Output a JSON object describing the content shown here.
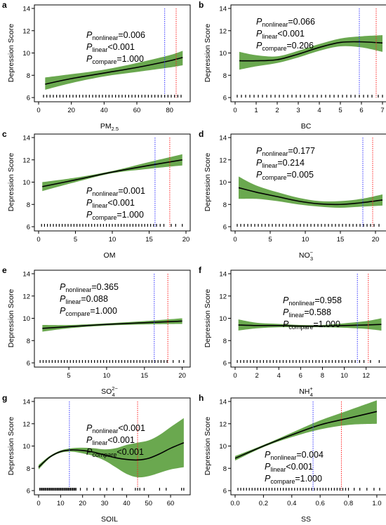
{
  "figure": {
    "colors": {
      "band": "#6aa84f",
      "line": "#000000",
      "blue_ref": "#3333ff",
      "red_ref": "#ff2222"
    }
  },
  "chart_data": [
    {
      "letter": "a",
      "type": "line",
      "xlabel": "PM",
      "xlabel_sub": "2.5",
      "xlabel_sup": "",
      "ylabel": "Depression Score",
      "xlim": [
        0,
        90
      ],
      "ylim": [
        6,
        14
      ],
      "xticks": [
        0,
        20,
        40,
        60,
        80
      ],
      "yticks": [
        6,
        8,
        10,
        12,
        14
      ],
      "x": [
        4,
        20,
        40,
        60,
        80,
        88
      ],
      "y": [
        7.2,
        7.7,
        8.2,
        8.7,
        9.3,
        9.6
      ],
      "lower": [
        6.7,
        7.3,
        7.9,
        8.3,
        8.7,
        8.9
      ],
      "upper": [
        7.8,
        8.1,
        8.5,
        9.1,
        9.8,
        10.2
      ],
      "ref_blue": 77,
      "ref_red": 84,
      "pvalues": [
        "=0.006",
        "<0.001",
        "=1.000"
      ],
      "plabels": [
        "nonlinear",
        "linear",
        "compare"
      ],
      "rug": [
        3,
        5,
        7,
        9,
        11,
        13,
        15,
        17,
        19,
        21,
        23,
        25,
        27,
        29,
        31,
        33,
        35,
        37,
        39,
        41,
        43,
        45,
        47,
        49,
        51,
        53,
        55,
        57,
        59,
        61,
        63,
        65,
        67,
        69,
        71,
        73,
        75,
        77,
        79,
        81,
        83,
        85,
        87
      ]
    },
    {
      "letter": "b",
      "type": "line",
      "xlabel": "BC",
      "xlabel_sub": "",
      "xlabel_sup": "",
      "ylabel": "Depression Score",
      "xlim": [
        0,
        7
      ],
      "ylim": [
        6,
        14
      ],
      "xticks": [
        0,
        1,
        2,
        3,
        4,
        5,
        6,
        7
      ],
      "yticks": [
        6,
        8,
        10,
        12,
        14
      ],
      "x": [
        0.2,
        1,
        2,
        3,
        4,
        5,
        6,
        7
      ],
      "y": [
        9.3,
        9.3,
        9.4,
        9.9,
        10.5,
        10.95,
        11.0,
        10.9
      ],
      "lower": [
        8.5,
        8.8,
        9.1,
        9.6,
        10.2,
        10.6,
        10.5,
        10.1
      ],
      "upper": [
        10.1,
        9.8,
        9.7,
        10.2,
        10.8,
        11.3,
        11.5,
        11.6
      ],
      "ref_blue": 5.9,
      "ref_red": 6.7,
      "pvalues": [
        "=0.066",
        "<0.001",
        "=0.206"
      ],
      "plabels": [
        "nonlinear",
        "linear",
        "compare"
      ],
      "rug": [
        0.1,
        0.3,
        0.5,
        0.7,
        0.9,
        1.1,
        1.3,
        1.5,
        1.7,
        1.9,
        2.1,
        2.3,
        2.5,
        2.7,
        2.9,
        3.1,
        3.3,
        3.5,
        3.7,
        3.9,
        4.1,
        4.3,
        4.5,
        4.7,
        4.9,
        5.1,
        5.3,
        5.5,
        5.7,
        5.9,
        6.1,
        6.3,
        6.5,
        6.8,
        7.0
      ]
    },
    {
      "letter": "c",
      "type": "line",
      "xlabel": "OM",
      "xlabel_sub": "",
      "xlabel_sup": "",
      "ylabel": "Depression Score",
      "xlim": [
        0,
        20
      ],
      "ylim": [
        6,
        14
      ],
      "xticks": [
        0,
        5,
        10,
        15,
        20
      ],
      "yticks": [
        6,
        8,
        10,
        12,
        14
      ],
      "x": [
        0.5,
        5,
        10,
        15,
        19.5
      ],
      "y": [
        9.6,
        10.2,
        10.9,
        11.5,
        12.0
      ],
      "lower": [
        9.2,
        10.0,
        10.8,
        11.2,
        11.5
      ],
      "upper": [
        10.0,
        10.4,
        11.0,
        11.8,
        12.5
      ],
      "ref_blue": 15.8,
      "ref_red": 17.8,
      "pvalues": [
        "=0.001",
        "<0.001",
        "=1.000"
      ],
      "plabels": [
        "nonlinear",
        "linear",
        "compare"
      ],
      "rug": [
        0.4,
        0.8,
        1.2,
        1.6,
        2,
        2.4,
        2.8,
        3.2,
        3.6,
        4,
        4.4,
        4.8,
        5.2,
        5.6,
        6,
        6.4,
        6.8,
        7.2,
        7.6,
        8,
        8.4,
        8.8,
        9.2,
        9.6,
        10,
        10.4,
        10.8,
        11.2,
        11.6,
        12,
        12.4,
        12.8,
        13.2,
        13.6,
        14,
        14.4,
        14.8,
        15.2,
        15.6,
        16,
        16.5,
        17,
        18,
        18.6,
        19.5
      ]
    },
    {
      "letter": "d",
      "type": "line",
      "xlabel": "NO",
      "xlabel_sub": "3",
      "xlabel_sup": "−",
      "ylabel": "Depression Score",
      "xlim": [
        0,
        21
      ],
      "ylim": [
        6,
        14
      ],
      "xticks": [
        0,
        5,
        10,
        15,
        20
      ],
      "yticks": [
        6,
        8,
        10,
        12,
        14
      ],
      "x": [
        0.5,
        3,
        6,
        9,
        12,
        15,
        18,
        21
      ],
      "y": [
        9.5,
        9.1,
        8.7,
        8.3,
        8.05,
        8.0,
        8.15,
        8.4
      ],
      "lower": [
        8.5,
        8.5,
        8.3,
        8.0,
        7.8,
        7.7,
        7.8,
        7.9
      ],
      "upper": [
        10.5,
        9.7,
        9.1,
        8.6,
        8.3,
        8.3,
        8.5,
        8.9
      ],
      "ref_blue": 18.2,
      "ref_red": 19.6,
      "pvalues": [
        "=0.177",
        "=0.214",
        "=0.005"
      ],
      "plabels": [
        "nonlinear",
        "linear",
        "compare"
      ],
      "rug": [
        0.3,
        0.8,
        1.3,
        1.8,
        2.3,
        2.8,
        3.3,
        3.8,
        4.3,
        4.8,
        5.3,
        5.8,
        6.3,
        6.8,
        7.3,
        7.8,
        8.3,
        8.8,
        9.3,
        9.8,
        10.3,
        10.8,
        11.3,
        11.8,
        12.3,
        12.8,
        13.3,
        13.8,
        14.3,
        14.8,
        15.3,
        15.8,
        16.3,
        16.8,
        17.3,
        17.8,
        18.3,
        18.8,
        19.3,
        19.8,
        20.5
      ]
    },
    {
      "letter": "e",
      "type": "line",
      "xlabel": "SO",
      "xlabel_sub": "4",
      "xlabel_sup": "2−",
      "ylabel": "Depression Score",
      "xlim": [
        1,
        20.5
      ],
      "ylim": [
        6,
        14
      ],
      "xticks": [
        5,
        10,
        15,
        20
      ],
      "yticks": [
        6,
        8,
        10,
        12,
        14
      ],
      "x": [
        1.5,
        5,
        10,
        15,
        20
      ],
      "y": [
        9.1,
        9.25,
        9.45,
        9.6,
        9.75
      ],
      "lower": [
        8.8,
        9.1,
        9.35,
        9.45,
        9.5
      ],
      "upper": [
        9.4,
        9.4,
        9.55,
        9.75,
        10.0
      ],
      "ref_blue": 16.3,
      "ref_red": 18.1,
      "pvalues": [
        "=0.365",
        "=0.088",
        "=1.000"
      ],
      "plabels": [
        "nonlinear",
        "linear",
        "compare"
      ],
      "rug": [
        1.2,
        1.6,
        2,
        2.4,
        2.8,
        3.2,
        3.6,
        4,
        4.4,
        4.8,
        5.2,
        5.6,
        6,
        6.4,
        6.8,
        7.2,
        7.6,
        8,
        8.4,
        8.8,
        9.2,
        9.6,
        10,
        10.4,
        10.8,
        11.2,
        11.6,
        12,
        12.4,
        12.8,
        13.2,
        13.6,
        14,
        14.4,
        14.8,
        15.2,
        15.6,
        16,
        16.4,
        16.8,
        17.2,
        17.6,
        18,
        18.8,
        19.6,
        20.2
      ]
    },
    {
      "letter": "f",
      "type": "line",
      "xlabel": "NH",
      "xlabel_sub": "4",
      "xlabel_sup": "+",
      "ylabel": "Depression Score",
      "xlim": [
        0,
        13.5
      ],
      "ylim": [
        6,
        14
      ],
      "xticks": [
        0,
        2,
        4,
        6,
        8,
        10,
        12
      ],
      "yticks": [
        6,
        8,
        10,
        12,
        14
      ],
      "x": [
        0.3,
        2,
        4,
        6,
        8,
        10,
        12,
        13.4
      ],
      "y": [
        9.4,
        9.35,
        9.35,
        9.3,
        9.3,
        9.35,
        9.4,
        9.45
      ],
      "lower": [
        8.9,
        9.1,
        9.2,
        9.2,
        9.2,
        9.15,
        9.05,
        8.9
      ],
      "upper": [
        9.9,
        9.6,
        9.5,
        9.4,
        9.4,
        9.55,
        9.75,
        10.0
      ],
      "ref_blue": 11.2,
      "ref_red": 12.2,
      "pvalues": [
        "=0.958",
        "=0.588",
        "=1.000"
      ],
      "plabels": [
        "nonlinear",
        "linear",
        "compare"
      ],
      "rug": [
        0.2,
        0.5,
        0.8,
        1.1,
        1.4,
        1.7,
        2,
        2.3,
        2.6,
        2.9,
        3.2,
        3.5,
        3.8,
        4.1,
        4.4,
        4.7,
        5,
        5.3,
        5.6,
        5.9,
        6.2,
        6.5,
        6.8,
        7.1,
        7.4,
        7.7,
        8,
        8.3,
        8.6,
        8.9,
        9.2,
        9.5,
        9.8,
        10.1,
        10.4,
        10.7,
        11,
        11.4,
        11.8,
        12.4,
        13.2
      ]
    },
    {
      "letter": "g",
      "type": "line",
      "xlabel": "SOIL",
      "xlabel_sub": "",
      "xlabel_sup": "",
      "ylabel": "Depression Score",
      "xlim": [
        0,
        67
      ],
      "ylim": [
        6,
        14
      ],
      "xticks": [
        0,
        10,
        20,
        30,
        40,
        50,
        60
      ],
      "yticks": [
        6,
        8,
        10,
        12,
        14
      ],
      "x": [
        0,
        5,
        10,
        15,
        20,
        25,
        30,
        35,
        40,
        45,
        50,
        55,
        60,
        66
      ],
      "y": [
        8.1,
        9.0,
        9.5,
        9.65,
        9.6,
        9.45,
        9.2,
        8.95,
        8.8,
        8.75,
        8.9,
        9.3,
        9.8,
        10.3
      ],
      "lower": [
        7.9,
        8.9,
        9.4,
        9.5,
        9.35,
        9.1,
        8.7,
        8.1,
        7.5,
        7.2,
        7.3,
        7.6,
        7.9,
        8.1
      ],
      "upper": [
        8.3,
        9.1,
        9.6,
        9.8,
        9.85,
        9.8,
        9.7,
        9.8,
        10.1,
        10.3,
        10.5,
        11.0,
        11.7,
        12.5
      ],
      "ref_blue": 14,
      "ref_red": 45,
      "pvalues": [
        "<0.001",
        "<0.001",
        "<0.001"
      ],
      "plabels": [
        "nonlinear",
        "linear",
        "compare"
      ],
      "rug": [
        0.5,
        1,
        1.5,
        2,
        2.5,
        3,
        3.5,
        4,
        4.5,
        5,
        5.5,
        6,
        6.5,
        7,
        7.5,
        8,
        8.5,
        9,
        9.5,
        10,
        10.5,
        11,
        11.5,
        12,
        12.5,
        13,
        13.5,
        14,
        14.5,
        15,
        15.5,
        16,
        16.5,
        17,
        19,
        22,
        25,
        28,
        31,
        34,
        38,
        44,
        45,
        46,
        48,
        55,
        58,
        65,
        66
      ]
    },
    {
      "letter": "h",
      "type": "line",
      "xlabel": "SS",
      "xlabel_sub": "",
      "xlabel_sup": "",
      "ylabel": "Depression Score",
      "xlim": [
        0,
        1.04
      ],
      "ylim": [
        6,
        14
      ],
      "xticks": [
        0.0,
        0.2,
        0.4,
        0.6,
        0.8,
        1.0
      ],
      "yticks": [
        6,
        8,
        10,
        12,
        14
      ],
      "x": [
        0.0,
        0.2,
        0.4,
        0.6,
        0.8,
        1.0
      ],
      "y": [
        8.9,
        10.0,
        11.0,
        11.9,
        12.5,
        13.1
      ],
      "lower": [
        8.7,
        9.9,
        10.8,
        11.5,
        11.9,
        12.0
      ],
      "upper": [
        9.1,
        10.1,
        11.2,
        12.3,
        13.2,
        14.1
      ],
      "ref_blue": 0.55,
      "ref_red": 0.75,
      "pvalues": [
        "=0.004",
        "<0.001",
        "=1.000"
      ],
      "plabels": [
        "nonlinear",
        "linear",
        "compare"
      ],
      "rug": [
        0.02,
        0.04,
        0.06,
        0.08,
        0.1,
        0.12,
        0.14,
        0.16,
        0.18,
        0.2,
        0.22,
        0.24,
        0.26,
        0.28,
        0.3,
        0.32,
        0.34,
        0.36,
        0.38,
        0.4,
        0.42,
        0.44,
        0.46,
        0.48,
        0.5,
        0.52,
        0.54,
        0.56,
        0.58,
        0.6,
        0.62,
        0.64,
        0.66,
        0.68,
        0.7,
        0.72,
        0.74,
        0.76,
        0.78,
        0.8,
        0.84,
        0.88,
        0.93,
        0.98,
        1.02
      ]
    }
  ]
}
